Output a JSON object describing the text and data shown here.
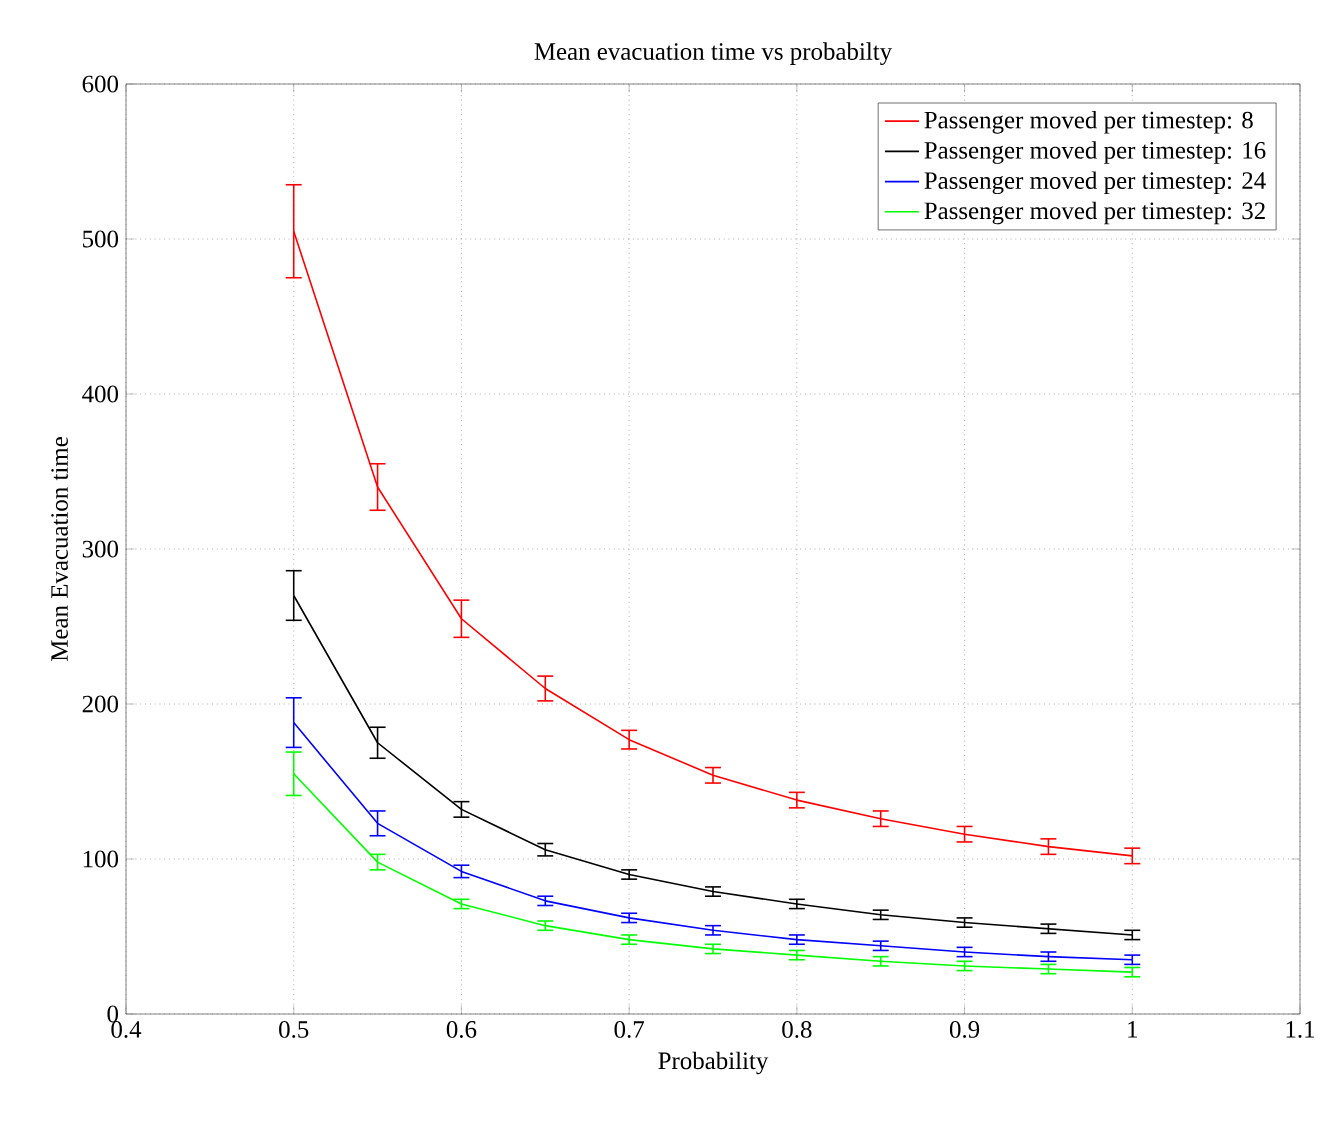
{
  "chart_data": {
    "type": "line",
    "title": "Mean evacuation time vs probabilty",
    "xlabel": "Probability",
    "ylabel": "Mean Evacuation time",
    "x": [
      0.5,
      0.55,
      0.6,
      0.65,
      0.7,
      0.75,
      0.8,
      0.85,
      0.9,
      0.95,
      1.0
    ],
    "series": [
      {
        "name": "Passenger moved per timestep: 8",
        "color": "#ff0000",
        "values": [
          505,
          340,
          255,
          210,
          177,
          154,
          138,
          126,
          116,
          108,
          102
        ],
        "errors": [
          30,
          15,
          12,
          8,
          6,
          5,
          5,
          5,
          5,
          5,
          5
        ]
      },
      {
        "name": "Passenger moved per timestep: 16",
        "color": "#000000",
        "values": [
          270,
          175,
          132,
          106,
          90,
          79,
          71,
          64,
          59,
          55,
          51
        ],
        "errors": [
          16,
          10,
          5,
          4,
          3,
          3,
          3,
          3,
          3,
          3,
          3
        ]
      },
      {
        "name": "Passenger moved per timestep: 24",
        "color": "#0000ff",
        "values": [
          188,
          123,
          92,
          73,
          62,
          54,
          48,
          44,
          40,
          37,
          35
        ],
        "errors": [
          16,
          8,
          4,
          3,
          3,
          3,
          3,
          3,
          3,
          3,
          3
        ]
      },
      {
        "name": "Passenger moved per timestep: 32",
        "color": "#00ff00",
        "values": [
          155,
          98,
          71,
          57,
          48,
          42,
          38,
          34,
          31,
          29,
          27
        ],
        "errors": [
          14,
          5,
          3,
          3,
          3,
          3,
          3,
          3,
          3,
          3,
          3
        ]
      }
    ],
    "xlim": [
      0.4,
      1.1
    ],
    "xticks": [
      0.4,
      0.5,
      0.6,
      0.7,
      0.8,
      0.9,
      1,
      1.1
    ],
    "ylim": [
      0,
      600
    ],
    "yticks": [
      0,
      100,
      200,
      300,
      400,
      500,
      600
    ],
    "grid": true,
    "legend": "top right",
    "marker": "none",
    "line_style": "solid"
  }
}
